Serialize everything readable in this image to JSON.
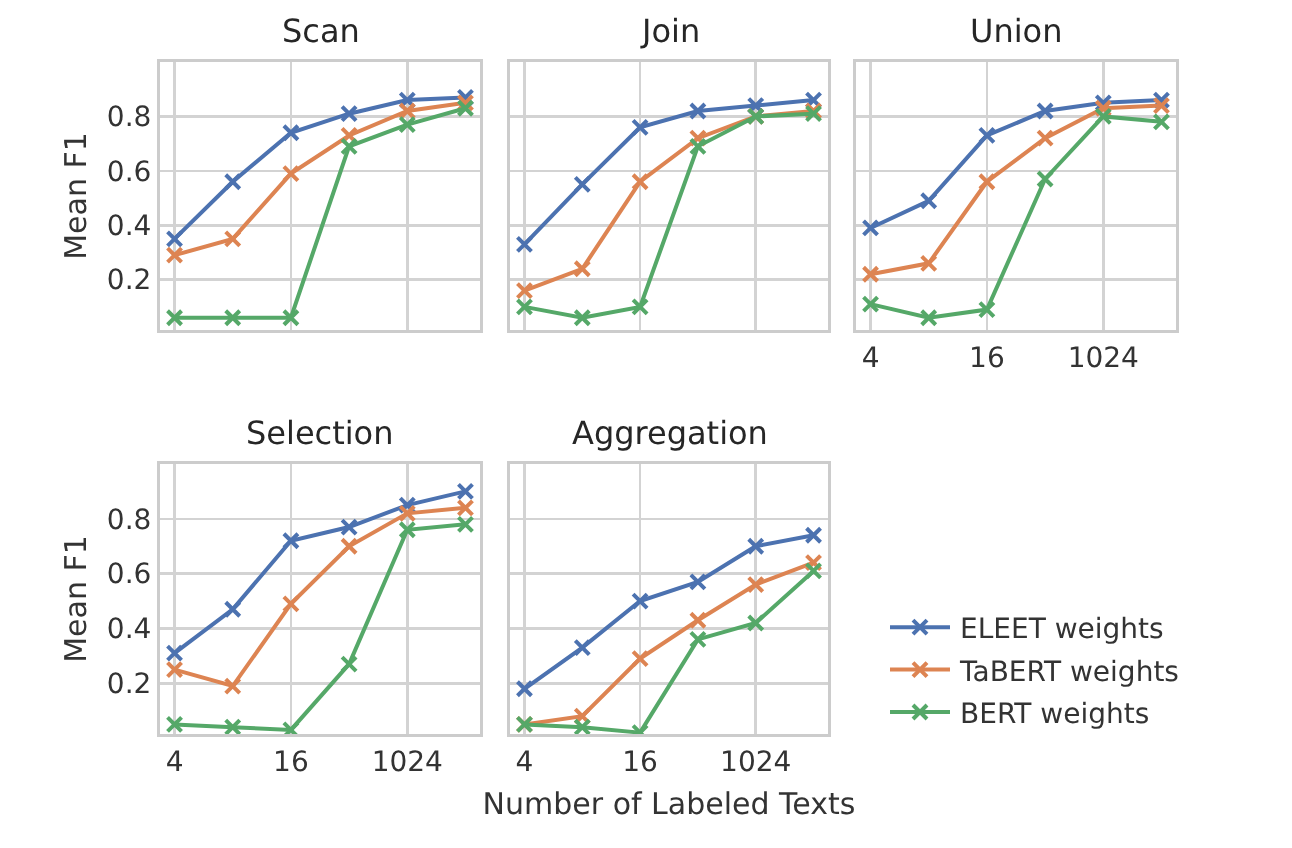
{
  "chart_data": [
    {
      "type": "line",
      "title": "Scan",
      "ylabel": "Mean F1",
      "categories": [
        "4",
        null,
        "16",
        null,
        "1024",
        null
      ],
      "ylim": [
        0.015,
        1.0
      ],
      "yticks": [
        0.2,
        0.4,
        0.6,
        0.8
      ],
      "grid": true,
      "marker": "cross",
      "line_style": "solid",
      "tick_labels": "y",
      "legend": "bottom right",
      "series": [
        {
          "name": "ELEET weights",
          "color": "#4c72b0",
          "values": [
            0.35,
            0.56,
            0.74,
            0.81,
            0.86,
            0.87
          ]
        },
        {
          "name": "TaBERT weights",
          "color": "#dd8452",
          "values": [
            0.29,
            0.35,
            0.59,
            0.73,
            0.82,
            0.85
          ]
        },
        {
          "name": "BERT weights",
          "color": "#55a868",
          "values": [
            0.06,
            0.06,
            0.06,
            0.69,
            0.77,
            0.83
          ]
        }
      ]
    },
    {
      "type": "line",
      "title": "Join",
      "categories": [
        "4",
        null,
        "16",
        null,
        "1024",
        null
      ],
      "ylim": [
        0.015,
        1.0
      ],
      "yticks": [
        {
          "value": 0.2,
          "label": null
        },
        {
          "value": 0.4,
          "label": null
        },
        {
          "value": 0.6,
          "label": null
        },
        {
          "value": 0.8,
          "label": null
        }
      ],
      "grid": true,
      "marker": "cross",
      "line_style": "solid",
      "tick_labels": false,
      "series": [
        {
          "color": "#4c72b0",
          "values": [
            0.33,
            0.55,
            0.76,
            0.82,
            0.84,
            0.86
          ]
        },
        {
          "color": "#dd8452",
          "values": [
            0.16,
            0.24,
            0.56,
            0.72,
            0.8,
            0.82
          ]
        },
        {
          "color": "#55a868",
          "values": [
            0.1,
            0.06,
            0.1,
            0.69,
            0.8,
            0.81
          ]
        }
      ]
    },
    {
      "type": "line",
      "title": "Union",
      "categories": [
        "4",
        null,
        "16",
        null,
        "1024",
        null
      ],
      "ylim": [
        0.015,
        1.0
      ],
      "yticks": [
        {
          "value": 0.2,
          "label": null
        },
        {
          "value": 0.4,
          "label": null
        },
        {
          "value": 0.6,
          "label": null
        },
        {
          "value": 0.8,
          "label": null
        }
      ],
      "grid": true,
      "marker": "cross",
      "line_style": "solid",
      "tick_labels": "x",
      "series": [
        {
          "color": "#4c72b0",
          "values": [
            0.39,
            0.49,
            0.73,
            0.82,
            0.85,
            0.86
          ]
        },
        {
          "color": "#dd8452",
          "values": [
            0.22,
            0.26,
            0.56,
            0.72,
            0.83,
            0.84
          ]
        },
        {
          "color": "#55a868",
          "values": [
            0.11,
            0.06,
            0.09,
            0.57,
            0.8,
            0.78
          ]
        }
      ]
    },
    {
      "type": "line",
      "title": "Selection",
      "ylabel": "Mean F1",
      "categories": [
        "4",
        null,
        "16",
        null,
        "1024",
        null
      ],
      "ylim": [
        0.015,
        1.0
      ],
      "yticks": [
        0.2,
        0.4,
        0.6,
        0.8
      ],
      "grid": true,
      "marker": "cross",
      "line_style": "solid",
      "series": [
        {
          "color": "#4c72b0",
          "values": [
            0.31,
            0.47,
            0.72,
            0.77,
            0.85,
            0.9
          ]
        },
        {
          "color": "#dd8452",
          "values": [
            0.25,
            0.19,
            0.49,
            0.7,
            0.82,
            0.84
          ]
        },
        {
          "color": "#55a868",
          "values": [
            0.05,
            0.04,
            0.03,
            0.27,
            0.76,
            0.78
          ]
        }
      ]
    },
    {
      "type": "line",
      "title": "Aggregation",
      "xlabel": "Number of Labeled Texts",
      "categories": [
        "4",
        null,
        "16",
        null,
        "1024",
        null
      ],
      "ylim": [
        0.015,
        1.0
      ],
      "yticks": [
        {
          "value": 0.2,
          "label": null
        },
        {
          "value": 0.4,
          "label": null
        },
        {
          "value": 0.6,
          "label": null
        },
        {
          "value": 0.8,
          "label": null
        }
      ],
      "grid": true,
      "marker": "cross",
      "line_style": "solid",
      "tick_labels": "x",
      "series": [
        {
          "color": "#4c72b0",
          "values": [
            0.18,
            0.33,
            0.5,
            0.57,
            0.7,
            0.74
          ]
        },
        {
          "color": "#dd8452",
          "values": [
            0.05,
            0.08,
            0.29,
            0.43,
            0.56,
            0.64
          ]
        },
        {
          "color": "#55a868",
          "values": [
            0.05,
            0.04,
            0.02,
            0.36,
            0.42,
            0.61
          ]
        }
      ]
    }
  ]
}
